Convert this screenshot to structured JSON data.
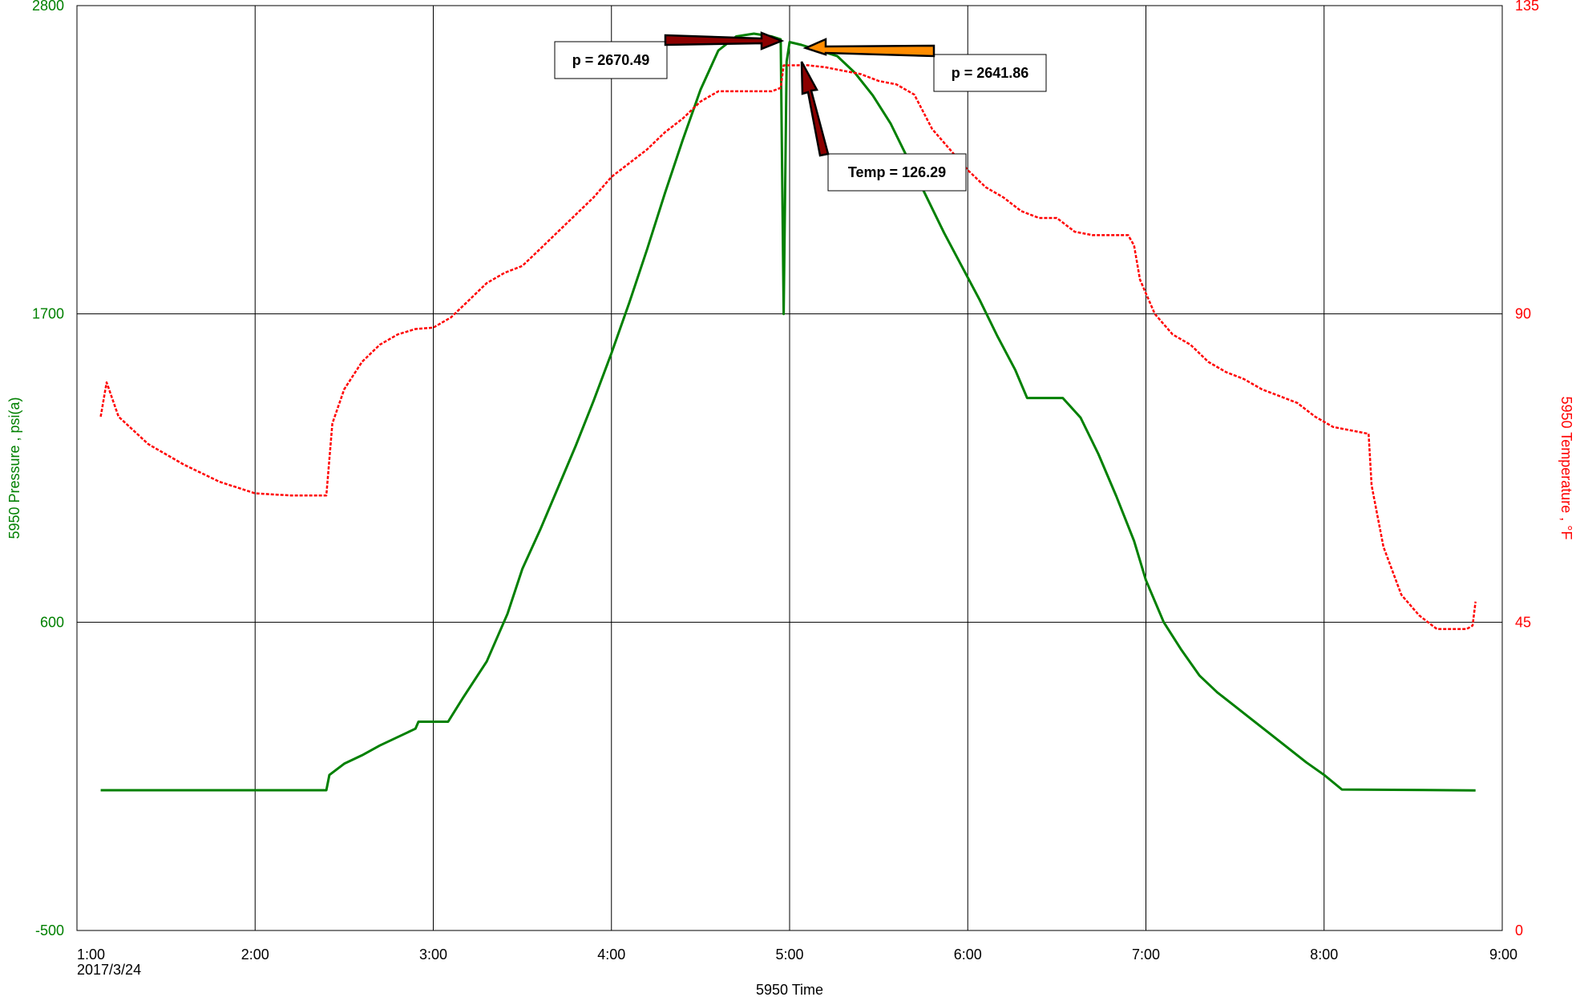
{
  "chart_data": {
    "type": "line",
    "xlabel": "5950 Time",
    "x_date_label": "2017/3/24",
    "ylabel_left": "5950 Pressure , psi(a)",
    "ylabel_right": "5950 Temperature , °F",
    "xlim": [
      "1:00",
      "9:00"
    ],
    "ylim_left": [
      -500,
      2800
    ],
    "ylim_right": [
      0,
      135
    ],
    "x_ticks": [
      "1:00",
      "2:00",
      "3:00",
      "4:00",
      "5:00",
      "6:00",
      "7:00",
      "8:00",
      "9:00"
    ],
    "y_ticks_left": [
      "2800",
      "1700",
      "600",
      "-500"
    ],
    "y_ticks_right": [
      "135",
      "90",
      "45",
      "0"
    ],
    "grid": true,
    "colors": {
      "pressure": "#008000",
      "temperature": "#ff0000",
      "arrow_dark": "#8b0000",
      "arrow_orange": "#ff8c00"
    },
    "series": [
      {
        "axis": "left",
        "style": "solid",
        "points": [
          [
            "1:08",
            0.5
          ],
          [
            "2:24",
            0.5
          ],
          [
            "2:25",
            55
          ],
          [
            "2:30",
            95
          ],
          [
            "2:36",
            125
          ],
          [
            "2:42",
            160
          ],
          [
            "2:48",
            190
          ],
          [
            "2:54",
            220
          ],
          [
            "2:55",
            245
          ],
          [
            "3:05",
            245
          ],
          [
            "3:10",
            330
          ],
          [
            "3:18",
            460
          ],
          [
            "3:25",
            630
          ],
          [
            "3:30",
            790
          ],
          [
            "3:36",
            930
          ],
          [
            "3:42",
            1080
          ],
          [
            "3:48",
            1230
          ],
          [
            "3:54",
            1390
          ],
          [
            "4:00",
            1560
          ],
          [
            "4:06",
            1740
          ],
          [
            "4:12",
            1930
          ],
          [
            "4:18",
            2130
          ],
          [
            "4:24",
            2320
          ],
          [
            "4:30",
            2500
          ],
          [
            "4:36",
            2640
          ],
          [
            "4:42",
            2690
          ],
          [
            "4:48",
            2700
          ],
          [
            "4:54",
            2690
          ],
          [
            "4:57",
            2680
          ],
          [
            "4:58",
            1700
          ],
          [
            "4:59",
            2600
          ],
          [
            "5:00",
            2670
          ],
          [
            "5:04",
            2660
          ],
          [
            "5:10",
            2640
          ],
          [
            "5:16",
            2620
          ],
          [
            "5:22",
            2560
          ],
          [
            "5:28",
            2480
          ],
          [
            "5:34",
            2380
          ],
          [
            "5:40",
            2250
          ],
          [
            "5:46",
            2120
          ],
          [
            "5:52",
            1990
          ],
          [
            "5:58",
            1870
          ],
          [
            "6:04",
            1750
          ],
          [
            "6:10",
            1620
          ],
          [
            "6:16",
            1500
          ],
          [
            "6:20",
            1400
          ],
          [
            "6:32",
            1400
          ],
          [
            "6:38",
            1330
          ],
          [
            "6:44",
            1200
          ],
          [
            "6:50",
            1050
          ],
          [
            "6:56",
            890
          ],
          [
            "7:00",
            750
          ],
          [
            "7:06",
            600
          ],
          [
            "7:12",
            500
          ],
          [
            "7:18",
            410
          ],
          [
            "7:24",
            350
          ],
          [
            "7:30",
            300
          ],
          [
            "7:36",
            250
          ],
          [
            "7:42",
            200
          ],
          [
            "7:48",
            150
          ],
          [
            "7:54",
            100
          ],
          [
            "8:00",
            55
          ],
          [
            "8:06",
            3
          ],
          [
            "8:51",
            0
          ]
        ]
      },
      {
        "axis": "right",
        "style": "dashed",
        "points": [
          [
            "1:08",
            75
          ],
          [
            "1:10",
            80
          ],
          [
            "1:14",
            75
          ],
          [
            "1:24",
            71
          ],
          [
            "1:36",
            68
          ],
          [
            "1:48",
            65.5
          ],
          [
            "2:00",
            63.8
          ],
          [
            "2:12",
            63.5
          ],
          [
            "2:24",
            63.5
          ],
          [
            "2:26",
            74
          ],
          [
            "2:30",
            79
          ],
          [
            "2:36",
            83
          ],
          [
            "2:42",
            85.5
          ],
          [
            "2:48",
            87
          ],
          [
            "2:54",
            87.8
          ],
          [
            "3:00",
            88
          ],
          [
            "3:06",
            89.5
          ],
          [
            "3:12",
            92
          ],
          [
            "3:18",
            94.5
          ],
          [
            "3:24",
            96
          ],
          [
            "3:30",
            97
          ],
          [
            "3:36",
            99.5
          ],
          [
            "3:42",
            102
          ],
          [
            "3:48",
            104.5
          ],
          [
            "3:54",
            107
          ],
          [
            "4:00",
            110
          ],
          [
            "4:06",
            112
          ],
          [
            "4:12",
            114
          ],
          [
            "4:18",
            116.5
          ],
          [
            "4:24",
            118.5
          ],
          [
            "4:30",
            121
          ],
          [
            "4:36",
            122.5
          ],
          [
            "4:42",
            122.5
          ],
          [
            "4:48",
            122.5
          ],
          [
            "4:54",
            122.5
          ],
          [
            "4:57",
            123
          ],
          [
            "4:58",
            126.29
          ],
          [
            "5:06",
            126.3
          ],
          [
            "5:12",
            126
          ],
          [
            "5:18",
            125.5
          ],
          [
            "5:24",
            125
          ],
          [
            "5:30",
            124
          ],
          [
            "5:36",
            123.5
          ],
          [
            "5:42",
            122
          ],
          [
            "5:48",
            117
          ],
          [
            "5:54",
            114
          ],
          [
            "6:00",
            111
          ],
          [
            "6:06",
            108.5
          ],
          [
            "6:12",
            107
          ],
          [
            "6:18",
            105
          ],
          [
            "6:24",
            104
          ],
          [
            "6:30",
            104
          ],
          [
            "6:36",
            102
          ],
          [
            "6:42",
            101.5
          ],
          [
            "6:48",
            101.5
          ],
          [
            "6:54",
            101.5
          ],
          [
            "6:56",
            100
          ],
          [
            "6:58",
            95
          ],
          [
            "7:03",
            90
          ],
          [
            "7:09",
            87
          ],
          [
            "7:15",
            85.5
          ],
          [
            "7:21",
            83
          ],
          [
            "7:27",
            81.5
          ],
          [
            "7:33",
            80.5
          ],
          [
            "7:39",
            79
          ],
          [
            "7:45",
            78
          ],
          [
            "7:51",
            77
          ],
          [
            "7:57",
            75
          ],
          [
            "8:03",
            73.5
          ],
          [
            "8:09",
            73
          ],
          [
            "8:15",
            72.5
          ],
          [
            "8:16",
            65
          ],
          [
            "8:20",
            56
          ],
          [
            "8:26",
            49
          ],
          [
            "8:32",
            46
          ],
          [
            "8:38",
            44
          ],
          [
            "8:48",
            44
          ],
          [
            "8:50",
            44.5
          ],
          [
            "8:51",
            48
          ]
        ]
      }
    ],
    "annotations": [
      {
        "label": "p = 2670.49"
      },
      {
        "label": "p = 2641.86"
      },
      {
        "label": "Temp = 126.29"
      }
    ]
  }
}
